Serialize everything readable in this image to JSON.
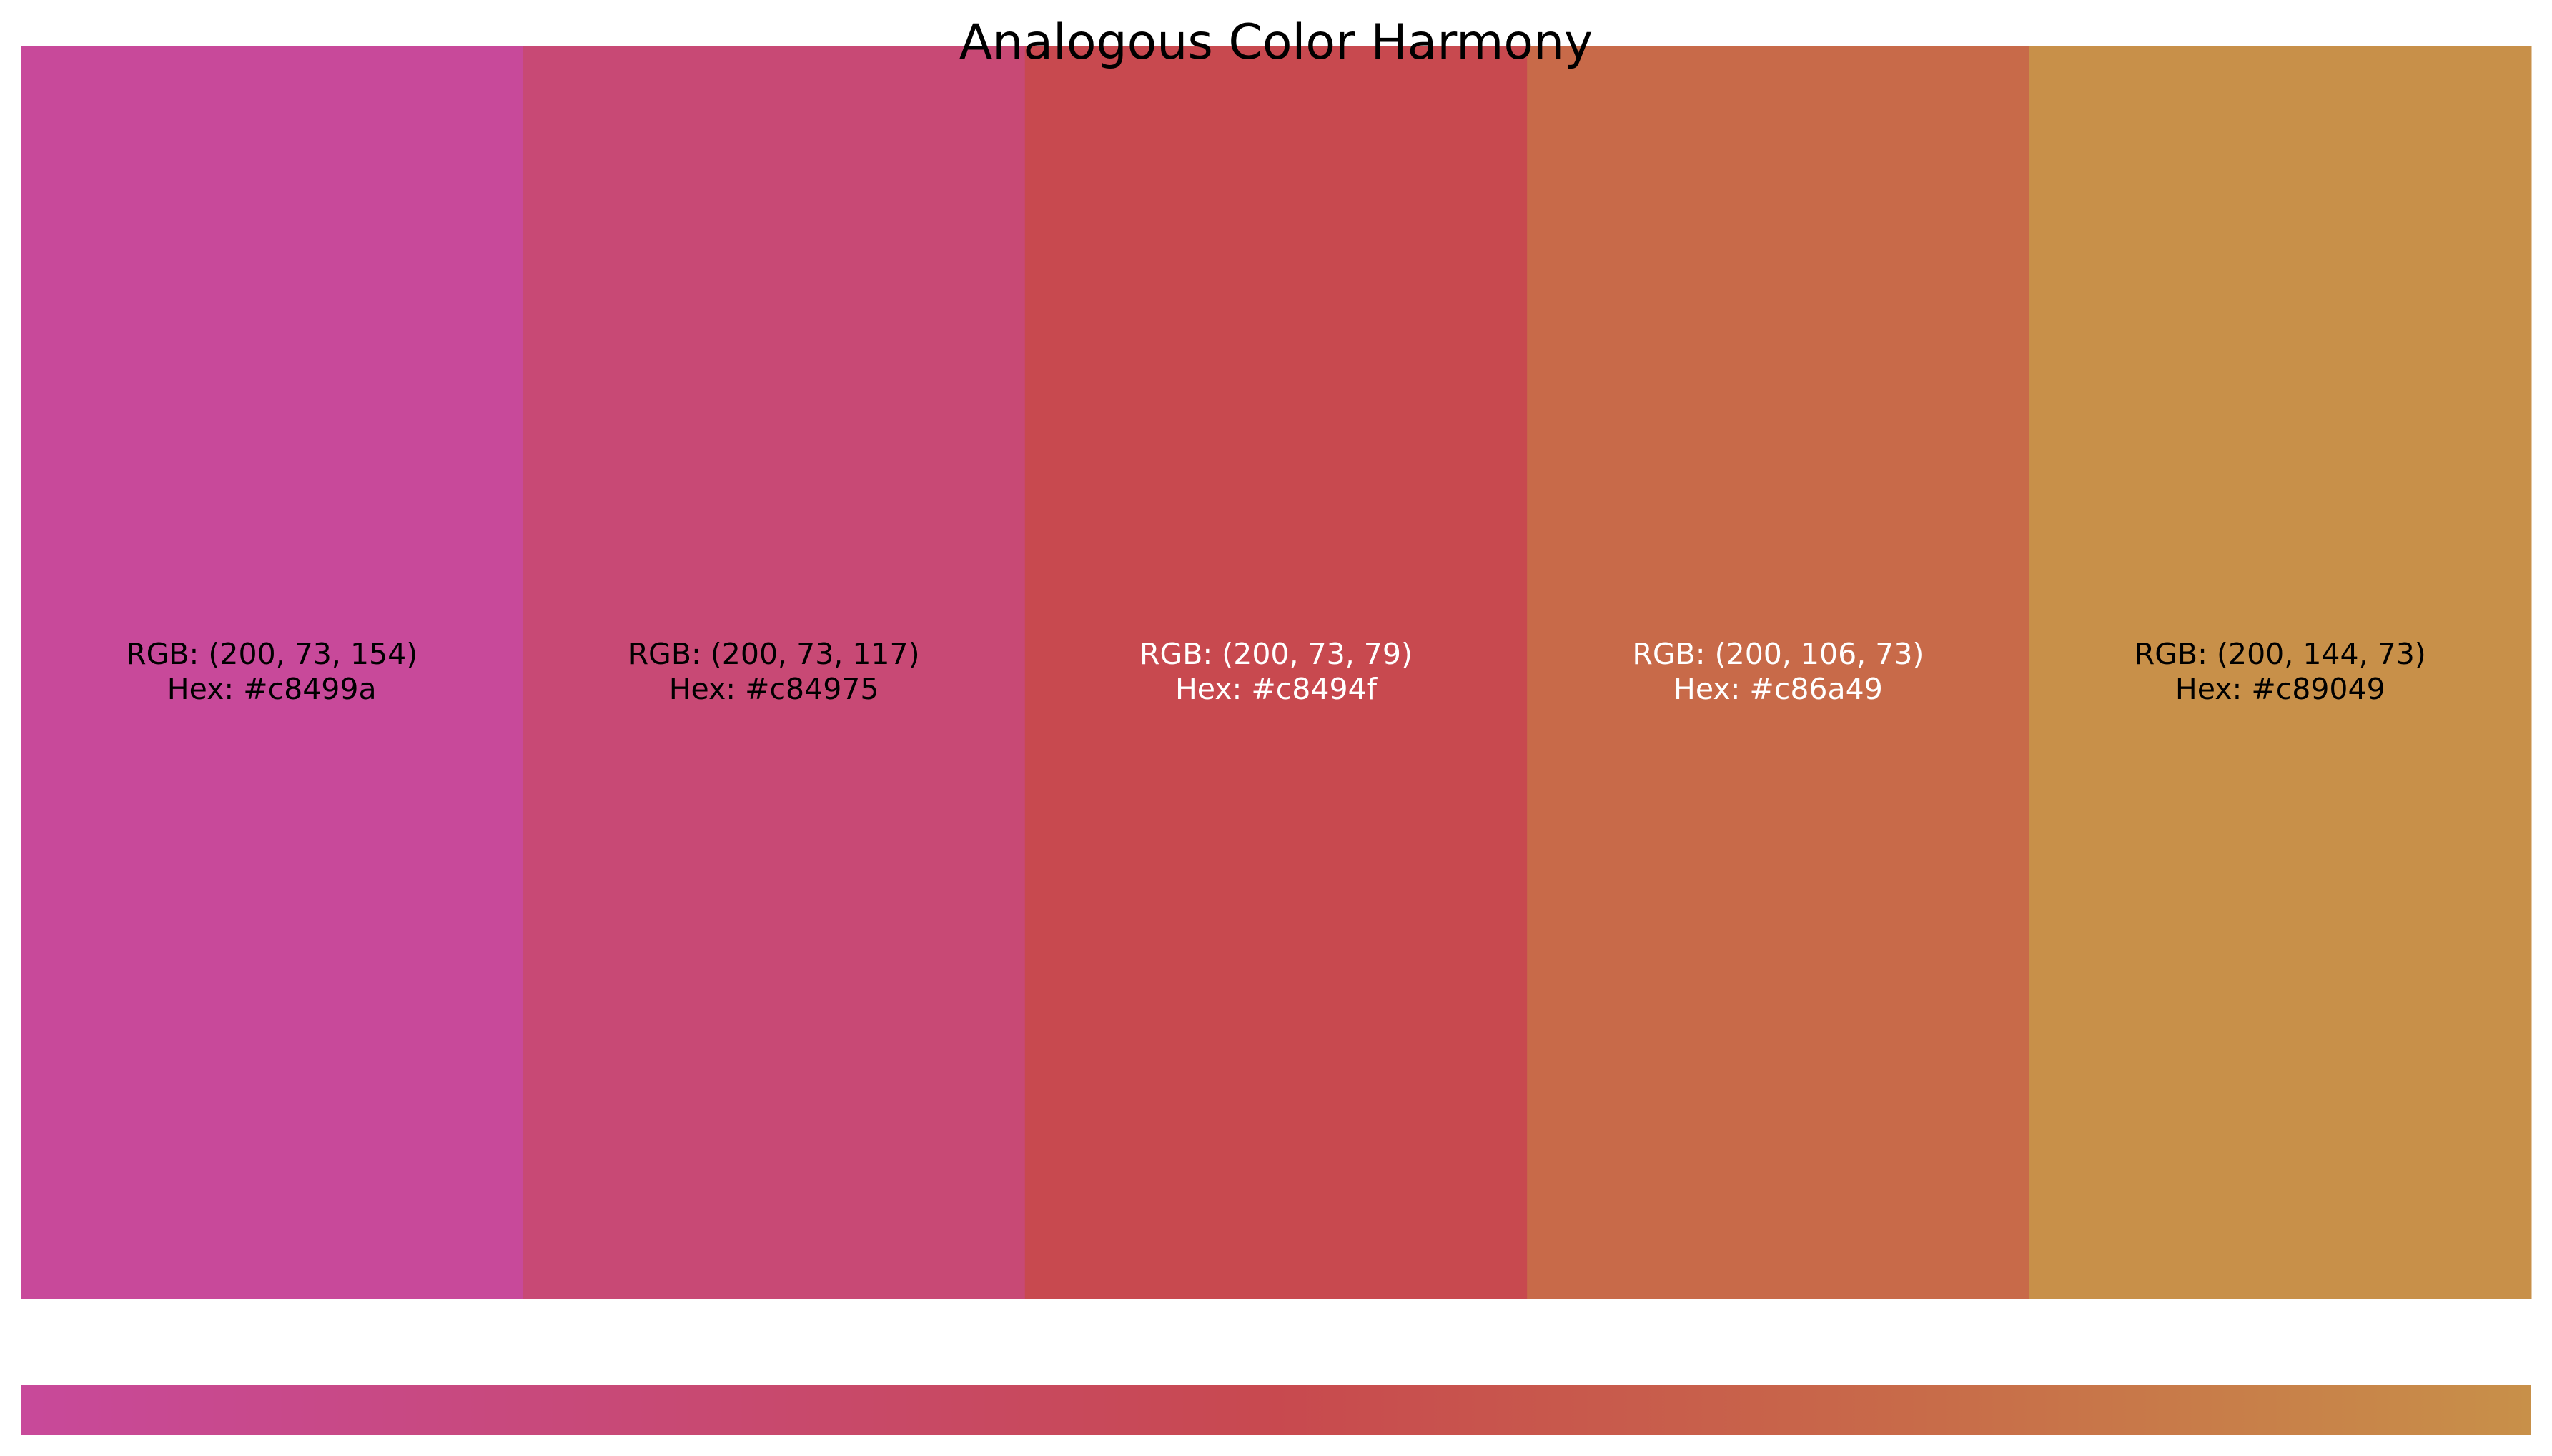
{
  "chart_data": {
    "type": "bar",
    "title": "Analogous Color Harmony",
    "swatches": [
      {
        "rgb_label": "RGB: (200, 73, 154)",
        "hex_label": "Hex: #c8499a",
        "color": "#c8499a",
        "text_color": "#000000"
      },
      {
        "rgb_label": "RGB: (200, 73, 117)",
        "hex_label": "Hex: #c84975",
        "color": "#c84975",
        "text_color": "#000000"
      },
      {
        "rgb_label": "RGB: (200, 73, 79)",
        "hex_label": "Hex: #c8494f",
        "color": "#c8494f",
        "text_color": "#ffffff"
      },
      {
        "rgb_label": "RGB: (200, 106, 73)",
        "hex_label": "Hex: #c86a49",
        "color": "#c86a49",
        "text_color": "#ffffff"
      },
      {
        "rgb_label": "RGB: (200, 144, 73)",
        "hex_label": "Hex: #c89049",
        "color": "#c89049",
        "text_color": "#000000"
      }
    ],
    "gradient_bar": true
  }
}
